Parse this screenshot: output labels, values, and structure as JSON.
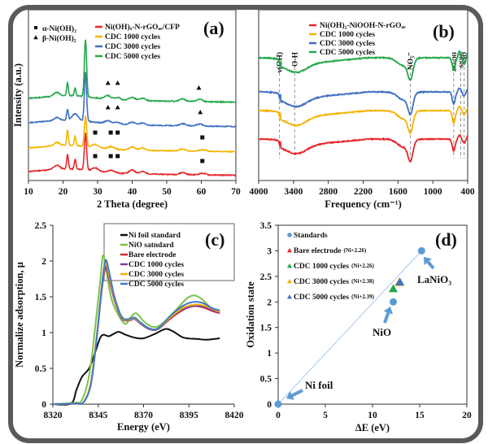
{
  "figure": {
    "frame_color": "#5a5a5a"
  },
  "chart_data": [
    {
      "id": "a",
      "type": "line",
      "panel_label": "(a)",
      "title": "",
      "xlabel": "2 Theta (degree)",
      "ylabel": "Intensity (a.u.)",
      "xlim": [
        10,
        70
      ],
      "xticks": [
        "10",
        "20",
        "30",
        "40",
        "50",
        "60",
        "70"
      ],
      "yticks": [],
      "marker_legend": [
        {
          "symbol": "square",
          "label": "α-Ni(OH)₂"
        },
        {
          "symbol": "triangle",
          "label": "β-Ni(OH)₂"
        }
      ],
      "series": [
        {
          "name": "Ni(OH)ₓ-N-rGOₐₑ/CFP",
          "color": "#e8262b",
          "offset": 0,
          "peaks": [
            [
              18.2,
              0.5
            ],
            [
              21.3,
              1.8
            ],
            [
              23.5,
              1.2
            ],
            [
              26.5,
              4.5
            ],
            [
              29.3,
              0.4
            ],
            [
              34,
              0.3
            ],
            [
              40,
              0.45
            ],
            [
              43,
              0.3
            ],
            [
              54.6,
              0.25
            ],
            [
              60.3,
              0.2
            ]
          ],
          "markers": [
            {
              "symbol": "square",
              "x": [
                29.3,
                33.8,
                35.8,
                60.3
              ]
            }
          ]
        },
        {
          "name": "CDC 1000 cycles",
          "color": "#f5b400",
          "offset": 1,
          "peaks": [
            [
              18.2,
              0.4
            ],
            [
              21.3,
              1.9
            ],
            [
              23.5,
              1.1
            ],
            [
              26.5,
              3.7
            ],
            [
              29.3,
              0.35
            ],
            [
              34,
              0.3
            ],
            [
              40,
              0.4
            ],
            [
              43,
              0.3
            ],
            [
              54.6,
              0.25
            ],
            [
              60.3,
              0.2
            ]
          ],
          "markers": [
            {
              "symbol": "square",
              "x": [
                29.3,
                33.8,
                35.8,
                60.3
              ]
            }
          ]
        },
        {
          "name": "CDC 3000 cycles",
          "color": "#3f6fc2",
          "offset": 2,
          "peaks": [
            [
              18.2,
              0.35
            ],
            [
              21.3,
              1.3
            ],
            [
              23.5,
              0.8
            ],
            [
              26.5,
              6.0
            ],
            [
              33,
              0.35
            ],
            [
              35.8,
              0.25
            ],
            [
              40,
              0.35
            ],
            [
              43,
              0.25
            ],
            [
              54.6,
              0.25
            ],
            [
              59.5,
              0.25
            ]
          ],
          "markers": [
            {
              "symbol": "triangle",
              "x": [
                33.0,
                35.8,
                59.7
              ]
            }
          ]
        },
        {
          "name": "CDC 5000 cycles",
          "color": "#22a84a",
          "offset": 3,
          "peaks": [
            [
              18.2,
              0.45
            ],
            [
              21.3,
              1.6
            ],
            [
              23.5,
              1.0
            ],
            [
              26.5,
              7.0
            ],
            [
              33,
              0.45
            ],
            [
              35.8,
              0.3
            ],
            [
              40,
              0.4
            ],
            [
              43,
              0.3
            ],
            [
              54.6,
              0.3
            ],
            [
              59.5,
              0.3
            ]
          ],
          "markers": [
            {
              "symbol": "triangle",
              "x": [
                33.0,
                35.8,
                59.3
              ]
            }
          ]
        }
      ]
    },
    {
      "id": "b",
      "type": "line",
      "panel_label": "(b)",
      "xlabel": "Frequency (cm⁻¹)",
      "ylabel": "",
      "xlim": [
        4000,
        400
      ],
      "xticks": [
        "4000",
        "3400",
        "2800",
        "2200",
        "1600",
        "1000",
        "400"
      ],
      "band_labels": [
        {
          "label": "ν(OH)",
          "x": 3640
        },
        {
          "label": "O-H",
          "x": 3380
        },
        {
          "label": "NO₃⁻",
          "x": 1385
        },
        {
          "label": "δNi-OH",
          "x": 640
        },
        {
          "label": "δ(OH)",
          "x": 520
        },
        {
          "label": "νNO",
          "x": 460
        }
      ],
      "series": [
        {
          "name": "Ni(OH)₂-NiOOH-N-rGOₐₑ",
          "color": "#e8262b",
          "offset": 0
        },
        {
          "name": "CDC 1000 cycles",
          "color": "#f5b400",
          "offset": 1
        },
        {
          "name": "CDC 3000 cycles",
          "color": "#3f6fc2",
          "offset": 2
        },
        {
          "name": "CDC 5000 cycles",
          "color": "#22a84a",
          "offset": 3
        }
      ]
    },
    {
      "id": "c",
      "type": "line",
      "panel_label": "(c)",
      "xlabel": "Energy (eV)",
      "ylabel": "Normalize adsorption, μ",
      "xlim": [
        8320,
        8420
      ],
      "ylim": [
        0,
        2.5
      ],
      "xticks": [
        "8320",
        "8345",
        "8370",
        "8395",
        "8420"
      ],
      "yticks": [
        "0",
        "0.5",
        "1",
        "1.5",
        "2",
        "2.5"
      ],
      "series": [
        {
          "name": "Ni foil standard",
          "color": "#111111",
          "points": [
            [
              8320,
              0
            ],
            [
              8330,
              0.01
            ],
            [
              8333,
              0.2
            ],
            [
              8336,
              0.38
            ],
            [
              8340,
              0.5
            ],
            [
              8343,
              0.7
            ],
            [
              8346,
              0.92
            ],
            [
              8348,
              0.97
            ],
            [
              8351,
              0.95
            ],
            [
              8356,
              1.01
            ],
            [
              8360,
              0.97
            ],
            [
              8365,
              0.93
            ],
            [
              8370,
              0.92
            ],
            [
              8376,
              0.98
            ],
            [
              8382,
              1.05
            ],
            [
              8386,
              1.02
            ],
            [
              8392,
              0.93
            ],
            [
              8400,
              0.91
            ],
            [
              8405,
              0.9
            ],
            [
              8412,
              0.92
            ]
          ]
        },
        {
          "name": "NiO satndard",
          "color": "#7cc24a",
          "points": [
            [
              8320,
              0
            ],
            [
              8332,
              0.02
            ],
            [
              8336,
              0.06
            ],
            [
              8340,
              0.4
            ],
            [
              8343,
              1.0
            ],
            [
              8346,
              1.7
            ],
            [
              8347.5,
              2.07
            ],
            [
              8349,
              1.95
            ],
            [
              8352,
              1.5
            ],
            [
              8356,
              1.25
            ],
            [
              8360,
              1.12
            ],
            [
              8363,
              1.22
            ],
            [
              8366,
              1.27
            ],
            [
              8370,
              1.16
            ],
            [
              8375,
              1.08
            ],
            [
              8380,
              1.12
            ],
            [
              8388,
              1.32
            ],
            [
              8394,
              1.48
            ],
            [
              8398,
              1.52
            ],
            [
              8402,
              1.47
            ],
            [
              8407,
              1.35
            ],
            [
              8412,
              1.3
            ]
          ]
        },
        {
          "name": "Bare electrode",
          "color": "#e8262b",
          "points": [
            [
              8320,
              0
            ],
            [
              8332,
              0.01
            ],
            [
              8337,
              0.03
            ],
            [
              8341,
              0.3
            ],
            [
              8344,
              0.9
            ],
            [
              8347,
              1.6
            ],
            [
              8349,
              1.9
            ],
            [
              8351,
              1.75
            ],
            [
              8354,
              1.45
            ],
            [
              8358,
              1.2
            ],
            [
              8362,
              1.17
            ],
            [
              8365,
              1.19
            ],
            [
              8368,
              1.13
            ],
            [
              8373,
              1.05
            ],
            [
              8378,
              1.05
            ],
            [
              8385,
              1.2
            ],
            [
              8392,
              1.32
            ],
            [
              8398,
              1.37
            ],
            [
              8403,
              1.35
            ],
            [
              8408,
              1.3
            ],
            [
              8412,
              1.27
            ]
          ]
        },
        {
          "name": "CDC 1000 cycles",
          "color": "#7b3fa0",
          "points": [
            [
              8320,
              0
            ],
            [
              8332,
              0.01
            ],
            [
              8337,
              0.03
            ],
            [
              8341,
              0.3
            ],
            [
              8344,
              0.9
            ],
            [
              8347,
              1.62
            ],
            [
              8349,
              1.92
            ],
            [
              8351,
              1.77
            ],
            [
              8354,
              1.46
            ],
            [
              8358,
              1.2
            ],
            [
              8362,
              1.17
            ],
            [
              8365,
              1.19
            ],
            [
              8368,
              1.13
            ],
            [
              8373,
              1.05
            ],
            [
              8378,
              1.05
            ],
            [
              8385,
              1.21
            ],
            [
              8392,
              1.33
            ],
            [
              8398,
              1.37
            ],
            [
              8403,
              1.36
            ],
            [
              8408,
              1.31
            ],
            [
              8412,
              1.28
            ]
          ]
        },
        {
          "name": "CDC 3000 cycles",
          "color": "#f5b400",
          "points": [
            [
              8320,
              0
            ],
            [
              8332,
              0.01
            ],
            [
              8337,
              0.03
            ],
            [
              8341,
              0.3
            ],
            [
              8344,
              0.9
            ],
            [
              8347,
              1.65
            ],
            [
              8349,
              1.97
            ],
            [
              8351,
              1.8
            ],
            [
              8354,
              1.48
            ],
            [
              8358,
              1.21
            ],
            [
              8362,
              1.18
            ],
            [
              8365,
              1.2
            ],
            [
              8368,
              1.14
            ],
            [
              8373,
              1.06
            ],
            [
              8378,
              1.06
            ],
            [
              8385,
              1.22
            ],
            [
              8392,
              1.35
            ],
            [
              8398,
              1.39
            ],
            [
              8403,
              1.38
            ],
            [
              8408,
              1.33
            ],
            [
              8412,
              1.29
            ]
          ]
        },
        {
          "name": "CDC 5000 cycles",
          "color": "#3f78c8",
          "points": [
            [
              8320,
              0
            ],
            [
              8332,
              0.01
            ],
            [
              8337,
              0.03
            ],
            [
              8341,
              0.28
            ],
            [
              8344,
              0.88
            ],
            [
              8347,
              1.65
            ],
            [
              8349,
              2.01
            ],
            [
              8351,
              1.85
            ],
            [
              8354,
              1.5
            ],
            [
              8358,
              1.22
            ],
            [
              8362,
              1.19
            ],
            [
              8365,
              1.21
            ],
            [
              8368,
              1.15
            ],
            [
              8373,
              1.06
            ],
            [
              8378,
              1.06
            ],
            [
              8385,
              1.24
            ],
            [
              8392,
              1.38
            ],
            [
              8398,
              1.43
            ],
            [
              8403,
              1.41
            ],
            [
              8408,
              1.34
            ],
            [
              8412,
              1.31
            ]
          ]
        }
      ]
    },
    {
      "id": "d",
      "type": "scatter",
      "panel_label": "(d)",
      "xlabel": "ΔE (eV)",
      "ylabel": "Oxidation state",
      "xlim": [
        0,
        20
      ],
      "ylim": [
        0,
        3.5
      ],
      "xticks": [
        "0",
        "5",
        "10",
        "15",
        "20"
      ],
      "yticks": [
        "0",
        "0.5",
        "1",
        "1.5",
        "2",
        "2.5",
        "3",
        "3.5"
      ],
      "fit_line": {
        "x": [
          0,
          15.2
        ],
        "y": [
          0,
          3
        ],
        "color": "#a9c8ec"
      },
      "series": [
        {
          "name": "Standards",
          "symbol": "circle",
          "color": "#5b9bd5",
          "points": [
            [
              0,
              0
            ],
            [
              12.2,
              2
            ],
            [
              15.2,
              3
            ]
          ]
        },
        {
          "name": "Bare electrode",
          "superscript": "(Ni+2.26)",
          "symbol": "triangle",
          "color": "#e8262b",
          "points": [
            [
              12.2,
              2.26
            ]
          ]
        },
        {
          "name": "CDC 1000 cycles",
          "superscript": "(Ni+2.26)",
          "symbol": "triangle",
          "color": "#22a84a",
          "points": [
            [
              12.2,
              2.26
            ]
          ]
        },
        {
          "name": "CDC 3000 cycles",
          "superscript": "(Ni+2.38)",
          "symbol": "triangle",
          "color": "#f5b400",
          "points": [
            [
              12.8,
              2.38
            ]
          ]
        },
        {
          "name": "CDC 5000 cycles",
          "superscript": "(Ni+2.39)",
          "symbol": "triangle",
          "color": "#4472c4",
          "points": [
            [
              12.9,
              2.39
            ]
          ]
        }
      ],
      "annotations": [
        {
          "text": "Ni foil",
          "target": [
            0,
            0
          ]
        },
        {
          "text": "NiO",
          "target": [
            12.2,
            2
          ]
        },
        {
          "text": "LaNiO₃",
          "target": [
            15.2,
            3
          ]
        }
      ]
    }
  ]
}
